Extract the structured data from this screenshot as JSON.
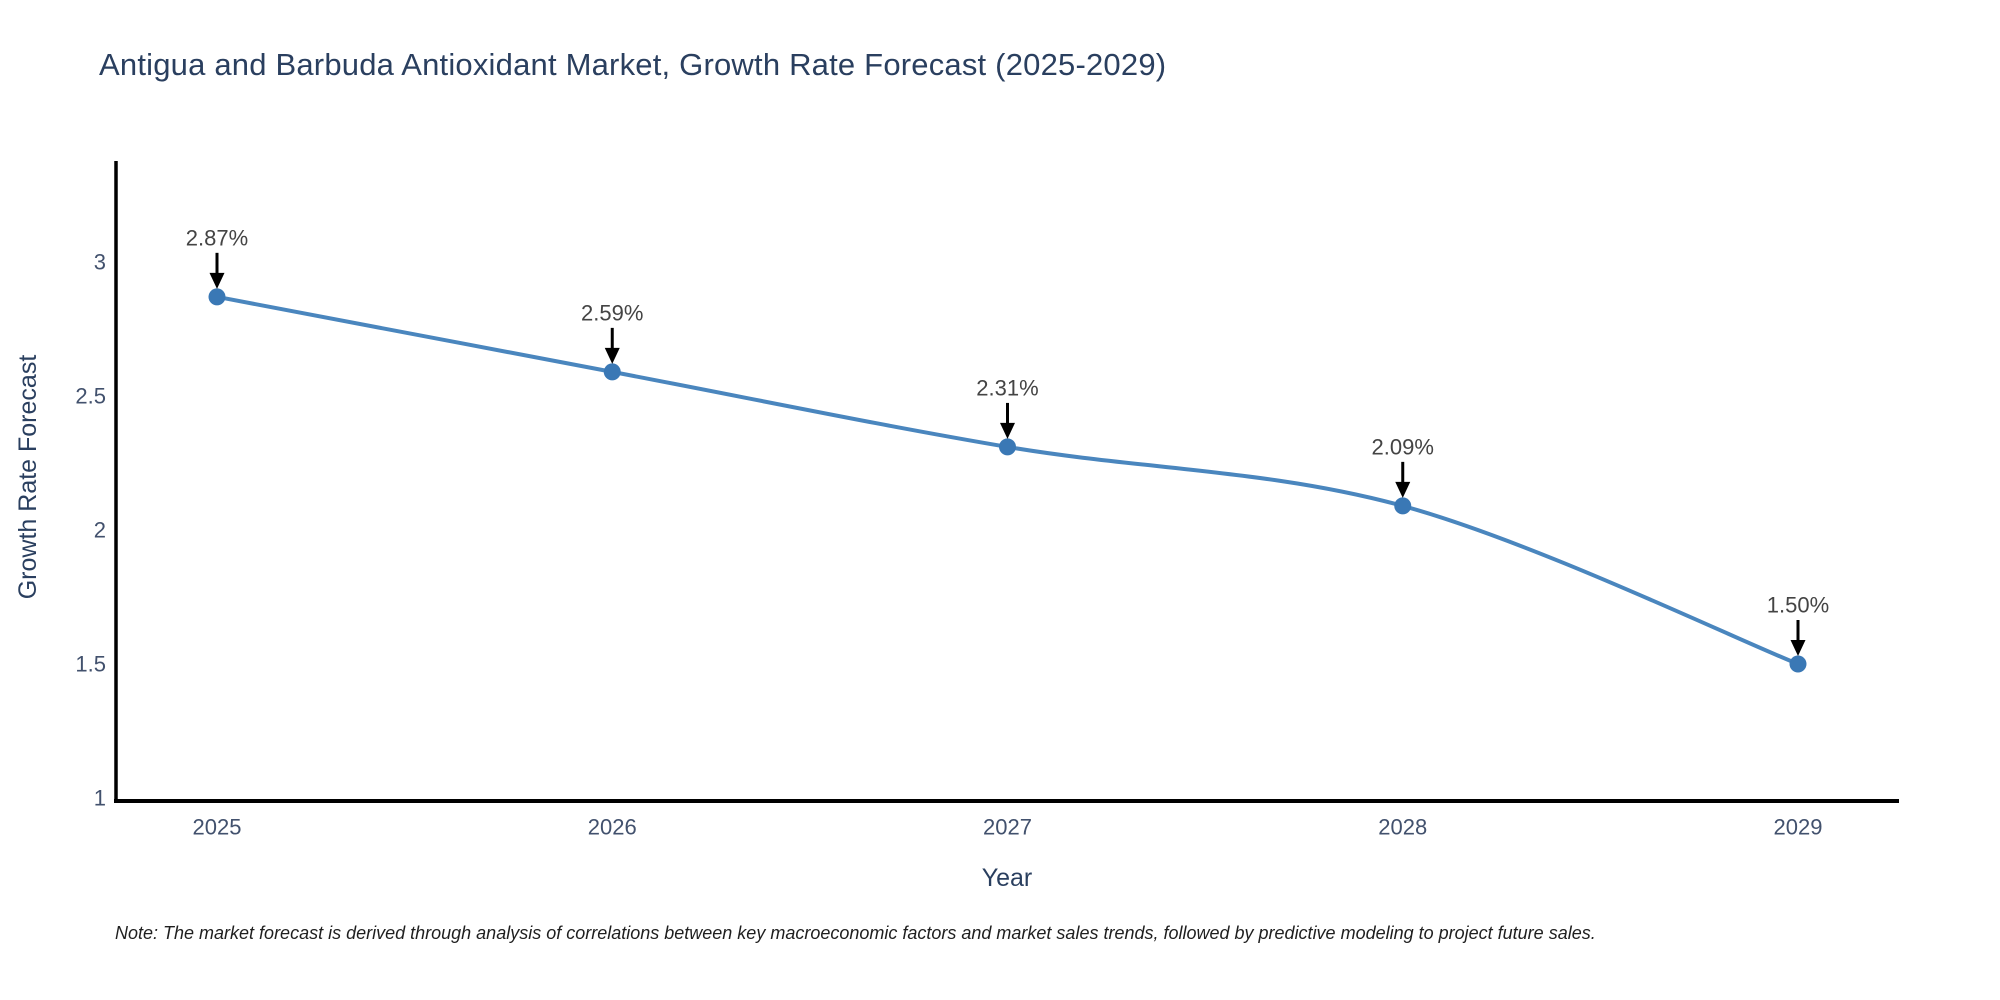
{
  "chart_data": {
    "type": "line",
    "title": "Antigua and Barbuda Antioxidant Market, Growth Rate Forecast (2025-2029)",
    "xlabel": "Year",
    "ylabel": "Growth Rate Forecast",
    "categories": [
      "2025",
      "2026",
      "2027",
      "2028",
      "2029"
    ],
    "values": [
      2.87,
      2.59,
      2.31,
      2.09,
      1.5
    ],
    "point_labels": [
      "2.87%",
      "2.59%",
      "2.31%",
      "2.09%",
      "1.50%"
    ],
    "yticks": [
      1,
      1.5,
      2,
      2.5,
      3
    ],
    "ytick_labels": [
      "1",
      "1.5",
      "2",
      "2.5",
      "3"
    ],
    "ylim": [
      0.99,
      3.38
    ],
    "line_shape": "spline",
    "legend": "none",
    "grid": "off",
    "colors": {
      "line": "#4a86be",
      "marker": "#3a78b5",
      "axis_line": "#000000",
      "axis_text": "#2a3f5f",
      "tick_text": "#42516d",
      "annotation_text": "#444444",
      "arrow": "#000000",
      "background": "#ffffff"
    },
    "note": "Note: The market forecast is derived through analysis of correlations between key macroeconomic factors and market sales trends, followed by predictive modeling to project future sales."
  }
}
